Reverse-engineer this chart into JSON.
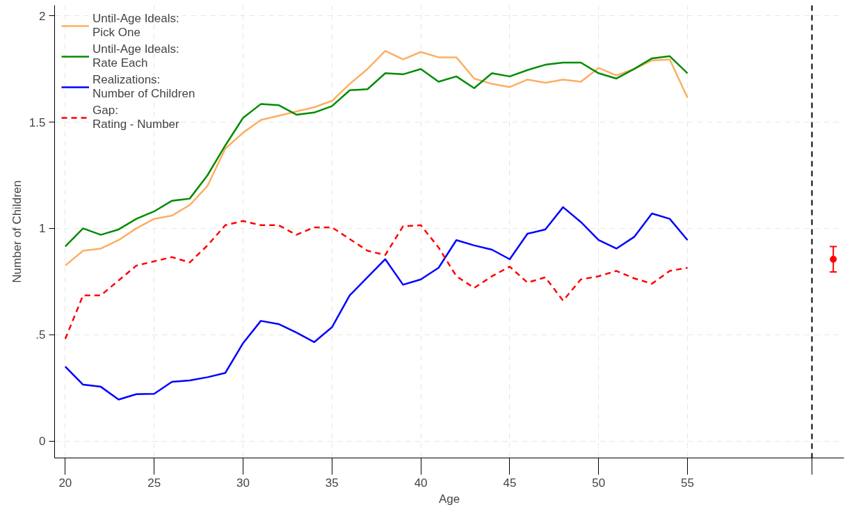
{
  "chart_data": {
    "type": "line",
    "xlabel": "Age",
    "ylabel": "Number of Children",
    "x": [
      20,
      21,
      22,
      23,
      24,
      25,
      26,
      27,
      28,
      29,
      30,
      31,
      32,
      33,
      34,
      35,
      36,
      37,
      38,
      39,
      40,
      41,
      42,
      43,
      44,
      45,
      46,
      47,
      48,
      49,
      50,
      51,
      52,
      53,
      54,
      55
    ],
    "series": [
      {
        "name": "Until-Age Ideals:\nPick One",
        "color": "#fdae61",
        "values": [
          0.825,
          0.895,
          0.905,
          0.945,
          1.0,
          1.045,
          1.06,
          1.11,
          1.2,
          1.375,
          1.45,
          1.51,
          1.53,
          1.55,
          1.57,
          1.6,
          1.68,
          1.75,
          1.835,
          1.795,
          1.83,
          1.805,
          1.805,
          1.705,
          1.68,
          1.665,
          1.7,
          1.685,
          1.7,
          1.69,
          1.755,
          1.72,
          1.75,
          1.79,
          1.795,
          1.615
        ]
      },
      {
        "name": "Until-Age Ideals:\nRate Each",
        "color": "#008c00",
        "values": [
          0.915,
          1.0,
          0.97,
          0.995,
          1.045,
          1.08,
          1.13,
          1.14,
          1.25,
          1.39,
          1.52,
          1.585,
          1.58,
          1.535,
          1.545,
          1.575,
          1.65,
          1.655,
          1.73,
          1.725,
          1.75,
          1.69,
          1.715,
          1.66,
          1.73,
          1.715,
          1.745,
          1.77,
          1.78,
          1.78,
          1.73,
          1.705,
          1.75,
          1.8,
          1.81,
          1.73
        ]
      },
      {
        "name": "Realizations:\nNumber of Children",
        "color": "#0000ff",
        "values": [
          0.35,
          0.265,
          0.255,
          0.195,
          0.22,
          0.222,
          0.278,
          0.285,
          0.3,
          0.32,
          0.46,
          0.565,
          0.55,
          0.51,
          0.465,
          0.535,
          0.685,
          0.77,
          0.855,
          0.735,
          0.76,
          0.815,
          0.945,
          0.92,
          0.9,
          0.855,
          0.975,
          0.995,
          1.1,
          1.03,
          0.945,
          0.905,
          0.96,
          1.07,
          1.045,
          0.945
        ]
      },
      {
        "name": "Gap:\nRating - Number",
        "color": "#ff0000",
        "line_style": "dashed",
        "values": [
          0.48,
          0.685,
          0.685,
          0.755,
          0.825,
          0.845,
          0.865,
          0.84,
          0.92,
          1.015,
          1.035,
          1.015,
          1.015,
          0.97,
          1.005,
          1.005,
          0.95,
          0.895,
          0.875,
          1.01,
          1.015,
          0.91,
          0.775,
          0.72,
          0.775,
          0.82,
          0.745,
          0.77,
          0.66,
          0.76,
          0.775,
          0.8,
          0.765,
          0.74,
          0.8,
          0.815
        ]
      },
      {
        "type": "scatter",
        "color": "#ff0000",
        "marker": "circle",
        "x": [
          63.2
        ],
        "values": [
          0.855
        ],
        "errors": [
          [
            0.795,
            0.915
          ]
        ]
      }
    ],
    "ref_lines": [
      {
        "axis": "x",
        "value": 62,
        "color": "#000000",
        "line_style": "dashed"
      }
    ],
    "xlim": [
      19.4,
      63.8
    ],
    "ylim": [
      -0.08,
      2.05
    ],
    "xticks": [
      20,
      25,
      30,
      35,
      40,
      45,
      50,
      55,
      {
        "value": 62,
        "label": null
      }
    ],
    "yticks": [
      0,
      {
        "value": 0.5,
        "label": ".5"
      },
      1,
      1.5,
      2
    ],
    "grid": true,
    "legend": "top left",
    "line_style": "solid"
  }
}
